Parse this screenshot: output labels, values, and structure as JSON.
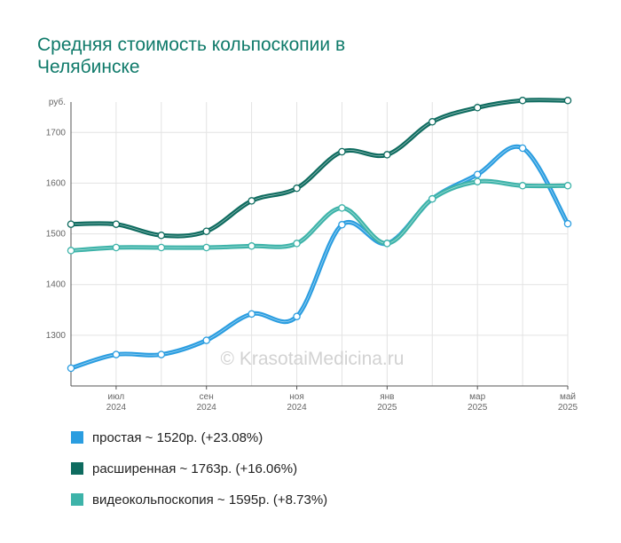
{
  "chart_data": {
    "type": "line",
    "title": "Средняя стоимость кольпоскопии в Челябинске",
    "ylabel": "руб.",
    "ylim": [
      1200,
      1760
    ],
    "yticks": [
      1300,
      1400,
      1500,
      1600,
      1700
    ],
    "x_tick_labels": [
      {
        "month": "июл",
        "year": "2024"
      },
      {
        "month": "сен",
        "year": "2024"
      },
      {
        "month": "ноя",
        "year": "2024"
      },
      {
        "month": "янв",
        "year": "2025"
      },
      {
        "month": "мар",
        "year": "2025"
      },
      {
        "month": "май",
        "year": "2025"
      }
    ],
    "x": [
      "2024-06",
      "2024-07",
      "2024-08",
      "2024-09",
      "2024-10",
      "2024-11",
      "2024-12",
      "2025-01",
      "2025-02",
      "2025-03",
      "2025-04",
      "2025-05"
    ],
    "series": [
      {
        "name": "простая",
        "color": "#2a9de0",
        "legend_label": "простая ~ 1520р. (+23.08%)",
        "values": [
          1235,
          1262,
          1262,
          1290,
          1342,
          1337,
          1518,
          1481,
          1569,
          1617,
          1669,
          1520
        ]
      },
      {
        "name": "расширенная",
        "color": "#0e6b5f",
        "legend_label": "расширенная ~ 1763р. (+16.06%)",
        "values": [
          1519,
          1519,
          1497,
          1505,
          1565,
          1590,
          1662,
          1656,
          1721,
          1749,
          1763,
          1763
        ]
      },
      {
        "name": "видеокольпоскопия",
        "color": "#3db3a9",
        "legend_label": "видеокольпоскопия ~ 1595р. (+8.73%)",
        "values": [
          1467,
          1473,
          1473,
          1473,
          1476,
          1481,
          1551,
          1481,
          1569,
          1603,
          1595,
          1595
        ]
      }
    ],
    "grid": true,
    "legend_position": "bottom",
    "watermark": "© KrasotaiMedicina.ru"
  }
}
